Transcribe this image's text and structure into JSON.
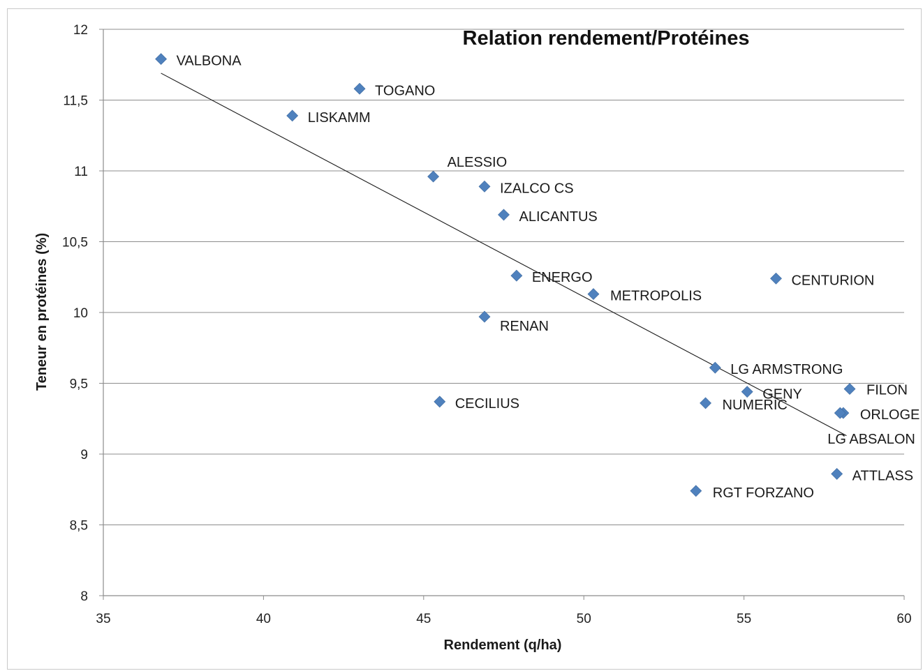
{
  "chart_data": {
    "type": "scatter",
    "title": "Relation rendement/Protéines",
    "xlabel": "Rendement (q/ha)",
    "ylabel": "Teneur en protéines (%)",
    "xlim": [
      35,
      60
    ],
    "ylim": [
      8,
      12
    ],
    "x_ticks": [
      "35",
      "40",
      "45",
      "50",
      "55",
      "60"
    ],
    "y_ticks": [
      "8",
      "8,5",
      "9",
      "9,5",
      "10",
      "10,5",
      "11",
      "11,5",
      "12"
    ],
    "grid": "horizontal",
    "marker_color": "#4f81bd",
    "points": [
      {
        "label": "VALBONA",
        "x": 36.8,
        "y": 11.79
      },
      {
        "label": "TOGANO",
        "x": 43.0,
        "y": 11.58
      },
      {
        "label": "LISKAMM",
        "x": 40.9,
        "y": 11.39
      },
      {
        "label": "ALESSIO",
        "x": 45.3,
        "y": 10.96
      },
      {
        "label": "IZALCO CS",
        "x": 46.9,
        "y": 10.89
      },
      {
        "label": "ALICANTUS",
        "x": 47.5,
        "y": 10.69
      },
      {
        "label": "ENERGO",
        "x": 47.9,
        "y": 10.26
      },
      {
        "label": "METROPOLIS",
        "x": 50.3,
        "y": 10.13
      },
      {
        "label": "CENTURION",
        "x": 56.0,
        "y": 10.24
      },
      {
        "label": "RENAN",
        "x": 46.9,
        "y": 9.97
      },
      {
        "label": "LG ARMSTRONG",
        "x": 54.1,
        "y": 9.61
      },
      {
        "label": "GENY",
        "x": 55.1,
        "y": 9.44
      },
      {
        "label": "FILON",
        "x": 58.3,
        "y": 9.46
      },
      {
        "label": "CECILIUS",
        "x": 45.5,
        "y": 9.37
      },
      {
        "label": "NUMERIC",
        "x": 53.8,
        "y": 9.36
      },
      {
        "label": "ORLOGE",
        "x": 58.1,
        "y": 9.29
      },
      {
        "label": "LG ABSALON",
        "x": 58.0,
        "y": 9.29
      },
      {
        "label": "ATTLASS",
        "x": 57.9,
        "y": 8.86
      },
      {
        "label": "RGT FORZANO",
        "x": 53.5,
        "y": 8.74
      }
    ],
    "trendline": {
      "type": "linear",
      "x": [
        36.8,
        58.2
      ],
      "y": [
        11.69,
        9.13
      ]
    }
  }
}
